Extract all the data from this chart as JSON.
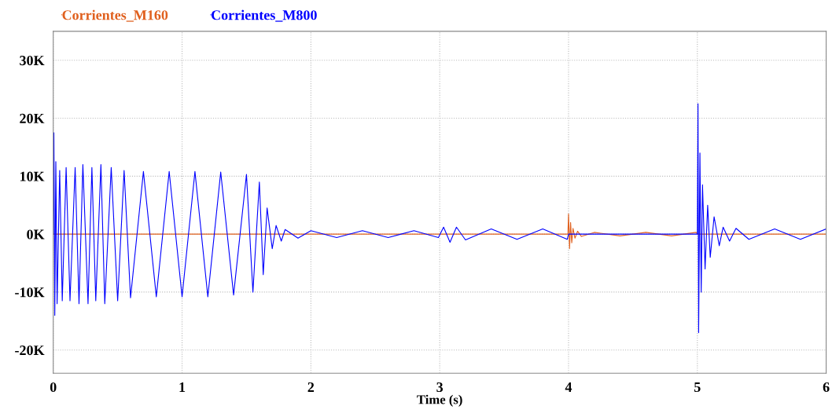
{
  "chart_data": {
    "type": "line",
    "xlabel": "Time (s)",
    "xlim": [
      0,
      6
    ],
    "xticks": [
      0,
      1,
      2,
      3,
      4,
      5,
      6
    ],
    "ylim": [
      -24000,
      35000
    ],
    "yticks": [
      {
        "value": -20000,
        "label": "-20K"
      },
      {
        "value": -10000,
        "label": "-10K"
      },
      {
        "value": 0,
        "label": "0K"
      },
      {
        "value": 10000,
        "label": "10K"
      },
      {
        "value": 20000,
        "label": "20K"
      },
      {
        "value": 30000,
        "label": "30K"
      }
    ],
    "grid": true,
    "legend": "top left",
    "line_style": "solid",
    "marker": "none",
    "series": [
      {
        "name": "Corrientes_M160",
        "color": "#e0601e",
        "x": [
          0,
          3.995,
          4.0,
          4.008,
          4.016,
          4.025,
          4.035,
          4.05,
          4.07,
          4.1,
          4.2,
          4.4,
          4.6,
          4.8,
          4.99,
          5.0,
          6.0
        ],
        "values": [
          0,
          0,
          3500,
          -2500,
          2000,
          -1500,
          1000,
          -700,
          500,
          -400,
          300,
          -300,
          300,
          -300,
          300,
          0,
          0
        ]
      },
      {
        "name": "Corrientes_M800",
        "color": "#0000ff",
        "x": [
          0,
          0.005,
          0.012,
          0.02,
          0.03,
          0.05,
          0.07,
          0.1,
          0.13,
          0.17,
          0.2,
          0.23,
          0.27,
          0.3,
          0.33,
          0.37,
          0.4,
          0.45,
          0.5,
          0.55,
          0.6,
          0.7,
          0.8,
          0.9,
          1.0,
          1.1,
          1.2,
          1.3,
          1.4,
          1.5,
          1.55,
          1.6,
          1.63,
          1.66,
          1.7,
          1.73,
          1.77,
          1.8,
          1.9,
          2.0,
          2.2,
          2.4,
          2.6,
          2.8,
          2.99,
          3.03,
          3.08,
          3.13,
          3.2,
          3.4,
          3.6,
          3.8,
          3.99,
          4.0,
          5.0,
          5.005,
          5.01,
          5.02,
          5.03,
          5.04,
          5.06,
          5.08,
          5.1,
          5.13,
          5.17,
          5.2,
          5.25,
          5.3,
          5.4,
          5.6,
          5.8,
          6.0
        ],
        "values": [
          0,
          17500,
          -14000,
          12500,
          -12000,
          11000,
          -11500,
          11500,
          -11500,
          11500,
          -12000,
          12000,
          -12000,
          11500,
          -11500,
          12000,
          -12000,
          11500,
          -11500,
          11000,
          -11000,
          10800,
          -10800,
          10800,
          -10800,
          10800,
          -10800,
          10700,
          -10500,
          10300,
          -10000,
          9000,
          -7000,
          4500,
          -2500,
          1500,
          -1200,
          800,
          -700,
          600,
          -600,
          600,
          -600,
          600,
          -600,
          1200,
          -1400,
          1200,
          -1000,
          900,
          -900,
          900,
          -900,
          0,
          0,
          22500,
          -17000,
          14000,
          -10000,
          8500,
          -6000,
          5000,
          -4000,
          3000,
          -2000,
          1200,
          -1200,
          1000,
          -900,
          900,
          -900,
          900
        ]
      }
    ]
  }
}
